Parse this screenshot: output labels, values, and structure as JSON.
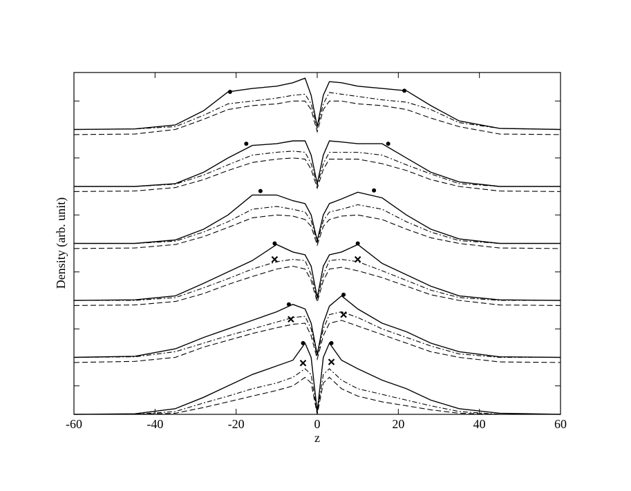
{
  "chart_data": {
    "type": "line",
    "x_label": "z",
    "y_label": "Density (arb. unit)",
    "x": [
      -60,
      -45,
      -35,
      -28,
      -22,
      -16,
      -10,
      -6,
      -3,
      -1.5,
      0,
      1.5,
      3,
      6,
      10,
      16,
      22,
      28,
      35,
      45,
      60
    ],
    "xlim": [
      -60,
      60
    ],
    "xticks": [
      -60,
      -40,
      -20,
      0,
      20,
      40,
      60
    ],
    "ylim": [
      0,
      6
    ],
    "yticks": [
      0.5,
      1.5,
      2.5,
      3.5,
      4.5,
      5.5
    ],
    "series": [
      {
        "style": "solid",
        "color": "#000000",
        "values": [
          5,
          5.01,
          5.08,
          5.33,
          5.66,
          5.72,
          5.76,
          5.82,
          5.9,
          5.6,
          5.05,
          5.6,
          5.84,
          5.82,
          5.76,
          5.72,
          5.68,
          5.42,
          5.15,
          5.02,
          5
        ]
      },
      {
        "style": "dashdot",
        "color": "#000000",
        "values": [
          5,
          5.01,
          5.05,
          5.25,
          5.45,
          5.5,
          5.55,
          5.6,
          5.62,
          5.45,
          5.02,
          5.45,
          5.65,
          5.62,
          5.58,
          5.52,
          5.48,
          5.35,
          5.12,
          5.02,
          5
        ]
      },
      {
        "style": "dashed",
        "color": "#000000",
        "values": [
          4.91,
          4.92,
          5,
          5.18,
          5.35,
          5.42,
          5.45,
          5.5,
          5.5,
          5.35,
          4.96,
          5.35,
          5.5,
          5.5,
          5.45,
          5.42,
          5.35,
          5.2,
          5.05,
          4.92,
          4.91
        ]
      },
      {
        "style": "solid",
        "color": "#000000",
        "values": [
          4,
          4,
          4.05,
          4.25,
          4.5,
          4.72,
          4.75,
          4.8,
          4.8,
          4.55,
          4.05,
          4.55,
          4.8,
          4.78,
          4.75,
          4.75,
          4.5,
          4.25,
          4.08,
          4,
          4
        ]
      },
      {
        "style": "dashdot",
        "color": "#000000",
        "values": [
          4,
          4,
          4.04,
          4.2,
          4.38,
          4.55,
          4.6,
          4.62,
          4.6,
          4.4,
          4.02,
          4.4,
          4.6,
          4.6,
          4.6,
          4.55,
          4.38,
          4.22,
          4.05,
          4,
          4
        ]
      },
      {
        "style": "dashed",
        "color": "#000000",
        "values": [
          3.91,
          3.92,
          3.98,
          4.12,
          4.28,
          4.42,
          4.48,
          4.5,
          4.48,
          4.3,
          3.97,
          4.3,
          4.48,
          4.48,
          4.48,
          4.4,
          4.28,
          4.12,
          4,
          3.92,
          3.91
        ]
      },
      {
        "style": "solid",
        "color": "#000000",
        "values": [
          3,
          3,
          3.06,
          3.25,
          3.5,
          3.85,
          3.85,
          3.75,
          3.7,
          3.5,
          3.05,
          3.5,
          3.7,
          3.78,
          3.9,
          3.8,
          3.5,
          3.25,
          3.08,
          3,
          3
        ]
      },
      {
        "style": "dashdot",
        "color": "#000000",
        "values": [
          3,
          3,
          3.04,
          3.2,
          3.38,
          3.6,
          3.65,
          3.6,
          3.55,
          3.4,
          3.02,
          3.4,
          3.55,
          3.6,
          3.68,
          3.6,
          3.38,
          3.2,
          3.05,
          3,
          3
        ]
      },
      {
        "style": "dashed",
        "color": "#000000",
        "values": [
          2.91,
          2.92,
          2.98,
          3.12,
          3.28,
          3.45,
          3.5,
          3.48,
          3.42,
          3.3,
          2.97,
          3.3,
          3.42,
          3.48,
          3.5,
          3.42,
          3.25,
          3.1,
          3,
          2.92,
          2.91
        ]
      },
      {
        "style": "solid",
        "color": "#000000",
        "values": [
          2,
          2.01,
          2.08,
          2.3,
          2.5,
          2.7,
          2.98,
          2.85,
          2.8,
          2.6,
          2.05,
          2.6,
          2.8,
          2.85,
          2.98,
          2.65,
          2.45,
          2.25,
          2.08,
          2.01,
          2
        ]
      },
      {
        "style": "dashdot",
        "color": "#000000",
        "values": [
          2,
          2,
          2.05,
          2.22,
          2.38,
          2.55,
          2.68,
          2.72,
          2.7,
          2.45,
          2.02,
          2.45,
          2.7,
          2.72,
          2.68,
          2.52,
          2.35,
          2.18,
          2.05,
          2,
          2
        ]
      },
      {
        "style": "dashed",
        "color": "#000000",
        "values": [
          1.91,
          1.92,
          1.98,
          2.12,
          2.28,
          2.42,
          2.55,
          2.6,
          2.55,
          2.35,
          1.97,
          2.35,
          2.55,
          2.58,
          2.52,
          2.4,
          2.25,
          2.1,
          2,
          1.92,
          1.91
        ]
      },
      {
        "style": "solid",
        "color": "#000000",
        "values": [
          1,
          1.02,
          1.15,
          1.35,
          1.5,
          1.65,
          1.8,
          1.93,
          1.85,
          1.6,
          1.05,
          1.6,
          1.9,
          2.08,
          1.85,
          1.6,
          1.45,
          1.25,
          1.1,
          1.01,
          1
        ]
      },
      {
        "style": "dashdot",
        "color": "#000000",
        "values": [
          1,
          1.01,
          1.1,
          1.25,
          1.38,
          1.5,
          1.62,
          1.7,
          1.72,
          1.5,
          1.02,
          1.5,
          1.75,
          1.8,
          1.7,
          1.5,
          1.35,
          1.2,
          1.06,
          1,
          1
        ]
      },
      {
        "style": "dashed",
        "color": "#000000",
        "values": [
          0.91,
          0.93,
          1,
          1.18,
          1.3,
          1.42,
          1.52,
          1.58,
          1.6,
          1.38,
          0.97,
          1.38,
          1.6,
          1.65,
          1.55,
          1.4,
          1.25,
          1.1,
          1,
          0.92,
          0.91
        ]
      },
      {
        "style": "solid",
        "color": "#000000",
        "values": [
          0,
          0.01,
          0.1,
          0.3,
          0.5,
          0.7,
          0.85,
          0.95,
          1.25,
          1.0,
          0.05,
          1.0,
          1.25,
          0.95,
          0.8,
          0.6,
          0.45,
          0.25,
          0.1,
          0.02,
          0
        ]
      },
      {
        "style": "dashdot",
        "color": "#000000",
        "values": [
          0,
          0,
          0.05,
          0.2,
          0.32,
          0.45,
          0.55,
          0.65,
          0.8,
          0.7,
          0.02,
          0.7,
          0.8,
          0.6,
          0.45,
          0.35,
          0.25,
          0.15,
          0.05,
          0,
          0
        ]
      },
      {
        "style": "dashed",
        "color": "#000000",
        "values": [
          0,
          0,
          0.02,
          0.12,
          0.22,
          0.32,
          0.42,
          0.5,
          0.65,
          0.55,
          0,
          0.55,
          0.65,
          0.45,
          0.32,
          0.22,
          0.15,
          0.08,
          0.02,
          0,
          0
        ]
      }
    ],
    "markers": {
      "dot": {
        "x": [
          -21.5,
          21.5,
          -17.5,
          17.5,
          -14,
          14,
          -10.5,
          10,
          -7,
          6.5,
          -3.5,
          3.5
        ],
        "y": [
          5.66,
          5.68,
          4.75,
          4.75,
          3.92,
          3.93,
          3.0,
          3.0,
          1.93,
          2.1,
          1.25,
          1.25
        ]
      },
      "cross": {
        "x": [
          -10.5,
          10,
          -6.5,
          6.5,
          -3.5,
          3.5
        ],
        "y": [
          2.72,
          2.72,
          1.67,
          1.75,
          0.9,
          0.92
        ]
      }
    }
  }
}
